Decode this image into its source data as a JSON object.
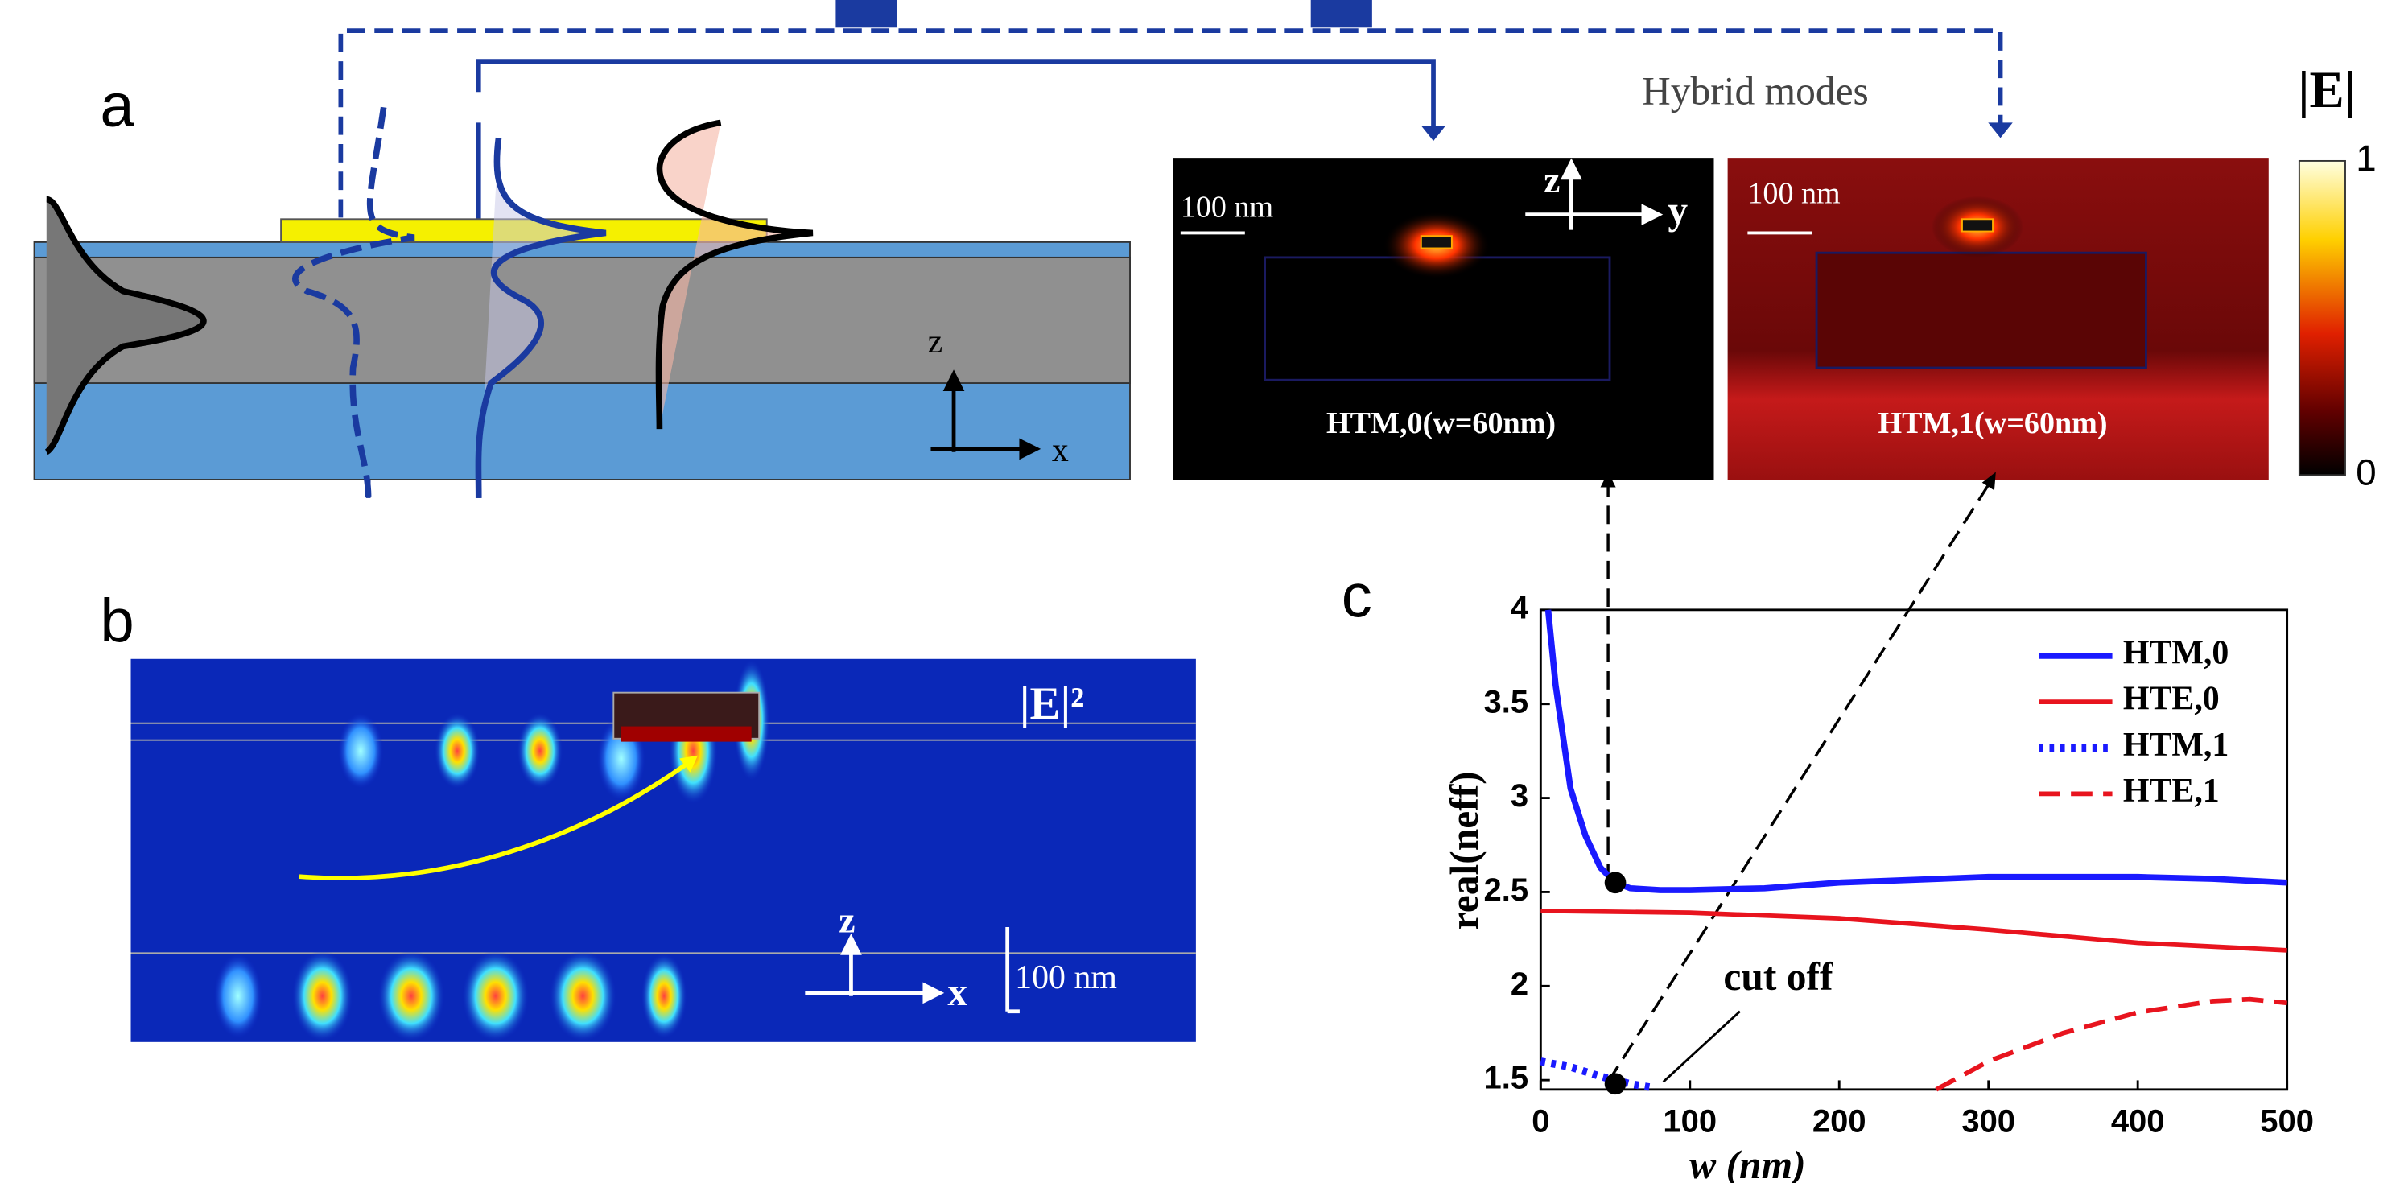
{
  "panel_labels": [
    "a",
    "b",
    "c"
  ],
  "panel_a": {
    "axes": [
      "z",
      "x"
    ]
  },
  "hybrid_modes": {
    "title": "Hybrid modes",
    "plots": [
      {
        "scale_bar": "100 nm",
        "label": "HTM,0(w=60nm)",
        "axes": [
          "z",
          "y"
        ]
      },
      {
        "scale_bar": "100 nm",
        "label": "HTM,1(w=60nm)"
      }
    ]
  },
  "colorbar": {
    "label": "|E|",
    "max": 1,
    "min": 0
  },
  "panel_b": {
    "label": "|E|²",
    "axes": [
      "z",
      "x"
    ],
    "scale_bar": "100 nm"
  },
  "chart_data": {
    "type": "line",
    "xlabel": "w (nm)",
    "ylabel": "real(neff)",
    "xlim": [
      0,
      500
    ],
    "ylim": [
      1.45,
      4
    ],
    "xticks": [
      0,
      100,
      200,
      300,
      400,
      500
    ],
    "yticks": [
      1.5,
      2,
      2.5,
      3,
      3.5,
      4
    ],
    "annotation": "cut off",
    "series": [
      {
        "name": "HTM,0",
        "color": "#1a1aff",
        "style": "solid",
        "x": [
          5,
          10,
          20,
          30,
          40,
          50,
          60,
          80,
          100,
          150,
          200,
          300,
          400,
          450,
          500
        ],
        "values": [
          4,
          3.6,
          3.05,
          2.8,
          2.63,
          2.55,
          2.52,
          2.51,
          2.51,
          2.52,
          2.55,
          2.58,
          2.58,
          2.57,
          2.55
        ]
      },
      {
        "name": "HTE,0",
        "color": "#e8141e",
        "style": "solid",
        "x": [
          0,
          100,
          200,
          300,
          400,
          500
        ],
        "values": [
          2.4,
          2.39,
          2.36,
          2.3,
          2.23,
          2.19
        ]
      },
      {
        "name": "HTM,1",
        "color": "#1a1aff",
        "style": "dotted",
        "x": [
          0,
          20,
          40,
          60,
          75
        ],
        "values": [
          1.6,
          1.57,
          1.52,
          1.48,
          1.46
        ]
      },
      {
        "name": "HTE,1",
        "color": "#e8141e",
        "style": "dashed",
        "x": [
          265,
          300,
          350,
          400,
          450,
          475,
          500
        ],
        "values": [
          1.45,
          1.6,
          1.75,
          1.86,
          1.92,
          1.93,
          1.91
        ]
      }
    ],
    "points": [
      {
        "x": 50,
        "y": 2.55
      },
      {
        "x": 50,
        "y": 1.48
      }
    ]
  }
}
